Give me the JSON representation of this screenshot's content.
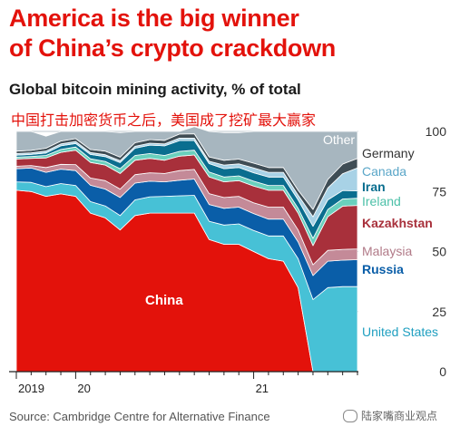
{
  "header": {
    "title_line1": "America is the big winner",
    "title_line2": "of China’s crypto crackdown",
    "subtitle": "Global bitcoin mining activity, % of total",
    "translated_subtitle": "中国打击加密货币之后，美国成了挖矿最大赢家"
  },
  "footer": {
    "source": "Source: Cambridge Centre for Alternative Finance",
    "watermark": "陆家嘴商业观点"
  },
  "chart_data": {
    "type": "area",
    "stacked": true,
    "x": [
      "2019-09",
      "2019-10",
      "2019-11",
      "2019-12",
      "2020-01",
      "2020-02",
      "2020-03",
      "2020-04",
      "2020-05",
      "2020-06",
      "2020-07",
      "2020-08",
      "2020-09",
      "2020-10",
      "2020-11",
      "2020-12",
      "2021-01",
      "2021-02",
      "2021-03",
      "2021-04",
      "2021-05",
      "2021-06",
      "2021-07",
      "2021-08"
    ],
    "x_tick_labels": [
      {
        "x": "2019-09",
        "label": "2019"
      },
      {
        "x": "2020-01",
        "label": "20"
      },
      {
        "x": "2021-01",
        "label": "21"
      }
    ],
    "ylim": [
      0,
      100
    ],
    "yticks": [
      0,
      25,
      50,
      75,
      100
    ],
    "ylabel": "",
    "grid": true,
    "series": [
      {
        "name": "China",
        "color": "#e3120b",
        "values": [
          75.5,
          75.0,
          73.0,
          74.0,
          73.0,
          66.0,
          64.0,
          59.0,
          65.0,
          66.0,
          66.0,
          66.0,
          66.0,
          55.0,
          53.0,
          53.0,
          50.0,
          47.0,
          46.0,
          35.0,
          0,
          0,
          0,
          0
        ]
      },
      {
        "name": "United States",
        "color": "#47c1d6",
        "values": [
          3.5,
          3.8,
          4.0,
          4.3,
          4.5,
          4.8,
          5.0,
          6.0,
          6.5,
          6.8,
          7.0,
          7.2,
          7.4,
          7.6,
          8.0,
          8.5,
          8.8,
          9.5,
          10.5,
          12.0,
          30.0,
          35.0,
          35.4,
          35.4
        ]
      },
      {
        "name": "Russia",
        "color": "#0a5ea8",
        "values": [
          5.5,
          6.0,
          6.0,
          6.0,
          6.2,
          6.8,
          7.0,
          7.5,
          7.0,
          6.5,
          6.0,
          6.5,
          6.8,
          7.0,
          7.0,
          7.0,
          7.0,
          7.0,
          7.0,
          7.0,
          10.0,
          11.0,
          11.0,
          11.2
        ]
      },
      {
        "name": "Malaysia",
        "color": "#c48a98",
        "values": [
          1.0,
          1.0,
          2.0,
          2.0,
          2.5,
          3.0,
          3.5,
          3.5,
          3.5,
          3.5,
          3.5,
          4.0,
          4.0,
          4.5,
          4.5,
          4.5,
          4.5,
          5.0,
          5.0,
          5.0,
          4.5,
          4.5,
          4.5,
          4.5
        ]
      },
      {
        "name": "Kazakhstan",
        "color": "#a8303b",
        "values": [
          3.0,
          3.0,
          4.0,
          5.0,
          6.0,
          6.5,
          6.5,
          6.5,
          6.0,
          6.0,
          5.5,
          6.0,
          6.0,
          7.0,
          6.5,
          6.5,
          7.0,
          7.0,
          7.0,
          7.0,
          8.0,
          14.0,
          18.0,
          18.1
        ]
      },
      {
        "name": "Ireland",
        "color": "#6ad0bd",
        "values": [
          0.8,
          0.8,
          1.0,
          1.2,
          1.3,
          1.5,
          1.5,
          2.0,
          2.0,
          2.0,
          2.0,
          2.0,
          2.0,
          2.0,
          2.0,
          2.0,
          2.0,
          2.0,
          2.0,
          2.0,
          3.0,
          3.0,
          3.0,
          3.0
        ]
      },
      {
        "name": "Iran",
        "color": "#0a6e8f",
        "values": [
          0.8,
          0.8,
          1.0,
          1.5,
          1.5,
          1.8,
          2.0,
          2.5,
          3.0,
          3.5,
          4.0,
          4.5,
          4.0,
          3.5,
          3.5,
          3.5,
          3.5,
          3.5,
          3.5,
          3.5,
          5.0,
          4.0,
          3.5,
          3.1
        ]
      },
      {
        "name": "Canada",
        "color": "#a8d2e6",
        "values": [
          0.7,
          0.7,
          0.8,
          0.8,
          0.8,
          0.8,
          0.8,
          0.8,
          0.8,
          0.8,
          0.8,
          1.0,
          1.0,
          1.0,
          1.5,
          1.5,
          2.0,
          2.0,
          2.0,
          2.0,
          4.0,
          5.0,
          7.0,
          9.5
        ]
      },
      {
        "name": "Germany",
        "color": "#3f4d55",
        "values": [
          1.0,
          1.0,
          1.2,
          1.2,
          1.2,
          1.3,
          1.5,
          1.5,
          1.5,
          1.5,
          1.5,
          1.7,
          1.8,
          1.8,
          2.0,
          2.0,
          2.0,
          2.0,
          2.0,
          2.0,
          3.0,
          3.5,
          4.0,
          4.0
        ]
      },
      {
        "name": "Other",
        "color": "#a7b6bf",
        "values": [
          8.2,
          7.9,
          5.0,
          4.0,
          3.0,
          7.5,
          8.2,
          10.2,
          4.7,
          3.4,
          3.7,
          1.1,
          3.0,
          10.6,
          11.5,
          11.0,
          13.2,
          15.0,
          15.0,
          24.5,
          32.5,
          20.0,
          13.6,
          11.2
        ]
      }
    ],
    "annotations": [
      "China"
    ]
  }
}
